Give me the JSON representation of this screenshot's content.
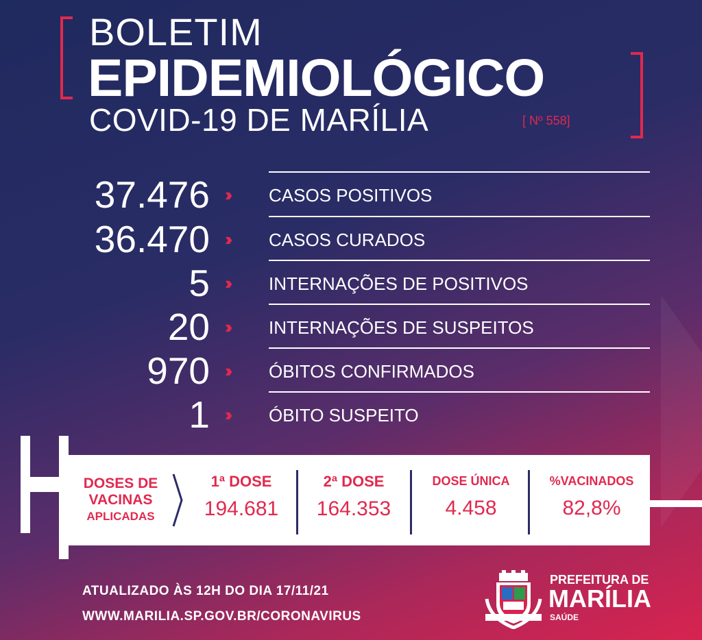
{
  "header": {
    "line1": "BOLETIM",
    "line2": "EPIDEMIOLÓGICO",
    "line3": "COVID-19 DE MARÍLIA",
    "issue": "[ Nº 558]"
  },
  "stats": [
    {
      "value": "37.476",
      "label": "CASOS POSITIVOS"
    },
    {
      "value": "36.470",
      "label": "CASOS CURADOS"
    },
    {
      "value": "5",
      "label": "INTERNAÇÕES DE POSITIVOS"
    },
    {
      "value": "20",
      "label": "INTERNAÇÕES DE SUSPEITOS"
    },
    {
      "value": "970",
      "label": "ÓBITOS CONFIRMADOS"
    },
    {
      "value": "1",
      "label": "ÓBITO SUSPEITO"
    }
  ],
  "arrow_glyph": "››",
  "vaccines": {
    "title_line1": "DOSES DE",
    "title_line2": "VACINAS",
    "title_line3": "APLICADAS",
    "columns": [
      {
        "label": "1ª DOSE",
        "value": "194.681"
      },
      {
        "label": "2ª DOSE",
        "value": "164.353"
      },
      {
        "label": "DOSE ÚNICA",
        "value": "4.458"
      },
      {
        "label": "%VACINADOS",
        "value": "82,8%"
      }
    ]
  },
  "footer": {
    "updated": "ATUALIZADO ÀS 12H DO DIA 17/11/21",
    "url": "WWW.MARILIA.SP.GOV.BR/CORONAVIRUS"
  },
  "logo": {
    "line1": "PREFEITURA DE",
    "line2": "MARÍLIA",
    "line3": "SAÚDE",
    "icon": "city-coat-of-arms-icon"
  },
  "colors": {
    "accent": "#e0294f",
    "navy": "#1f2a5e",
    "white": "#ffffff"
  }
}
